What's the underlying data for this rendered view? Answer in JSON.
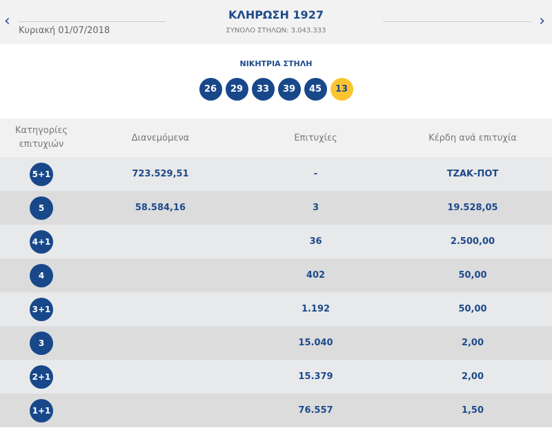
{
  "header": {
    "title": "ΚΛΗΡΩΣΗ 1927",
    "date": "Κυριακή 01/07/2018",
    "total": "ΣΥΝΟΛΟ ΣΤΗΛΩΝ: 3.043.333",
    "prev": "‹",
    "next": "›"
  },
  "winning": {
    "label": "ΝΙΚΗΤΡΙΑ ΣΤΗΛΗ",
    "numbers": [
      "26",
      "29",
      "33",
      "39",
      "45"
    ],
    "joker": "13",
    "colors": {
      "ball": "#18488a",
      "joker": "#fbc531"
    }
  },
  "table": {
    "headers": [
      "Κατηγορίες επιτυχιών",
      "Διανεμόμενα",
      "Επιτυχίες",
      "Κέρδη ανά επιτυχία"
    ],
    "rows": [
      {
        "cat": "5+1",
        "dist": "723.529,51",
        "wins": "-",
        "prize": "ΤΖΑΚ-ΠΟΤ"
      },
      {
        "cat": "5",
        "dist": "58.584,16",
        "wins": "3",
        "prize": "19.528,05"
      },
      {
        "cat": "4+1",
        "dist": "",
        "wins": "36",
        "prize": "2.500,00"
      },
      {
        "cat": "4",
        "dist": "",
        "wins": "402",
        "prize": "50,00"
      },
      {
        "cat": "3+1",
        "dist": "",
        "wins": "1.192",
        "prize": "50,00"
      },
      {
        "cat": "3",
        "dist": "",
        "wins": "15.040",
        "prize": "2,00"
      },
      {
        "cat": "2+1",
        "dist": "",
        "wins": "15.379",
        "prize": "2,00"
      },
      {
        "cat": "1+1",
        "dist": "",
        "wins": "76.557",
        "prize": "1,50"
      }
    ]
  }
}
